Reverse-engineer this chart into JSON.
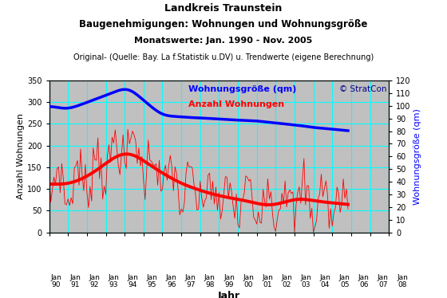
{
  "title_line1": "Landkreis Traunstein",
  "title_line2": "Baugenehmigungen: Wohnungen und Wohnungsgröße",
  "title_line3": "Monatswerte: Jan. 1990 - Nov. 2005",
  "title_line4": "Original- (Quelle: Bay. La f.Statistik u.DV) u. Trendwerte (eigene Berechnung)",
  "xlabel": "Jahr",
  "ylabel_left": "Anzahl Wohnungen",
  "ylabel_right": "Wohnungsgröße (qm)",
  "legend_label1": "Wohnungsgröße (qm)",
  "legend_label2": "Anzahl Wohnungen",
  "watermark": "© StratCon",
  "bg_color": "#c0c0c0",
  "grid_color": "#00ffff",
  "ylim_left": [
    0,
    350
  ],
  "ylim_right": [
    0,
    120
  ],
  "yticks_left": [
    0,
    50,
    100,
    150,
    200,
    250,
    300,
    350
  ],
  "yticks_right": [
    0,
    10,
    20,
    30,
    40,
    50,
    60,
    70,
    80,
    90,
    100,
    110,
    120
  ],
  "xtick_labels_bot": [
    "90",
    "91",
    "92",
    "93",
    "94",
    "95",
    "96",
    "97",
    "98",
    "99",
    "00",
    "01",
    "02",
    "03",
    "04",
    "05",
    "06",
    "07",
    "08"
  ],
  "fig_bg": "#ffffff",
  "n_years": 19
}
